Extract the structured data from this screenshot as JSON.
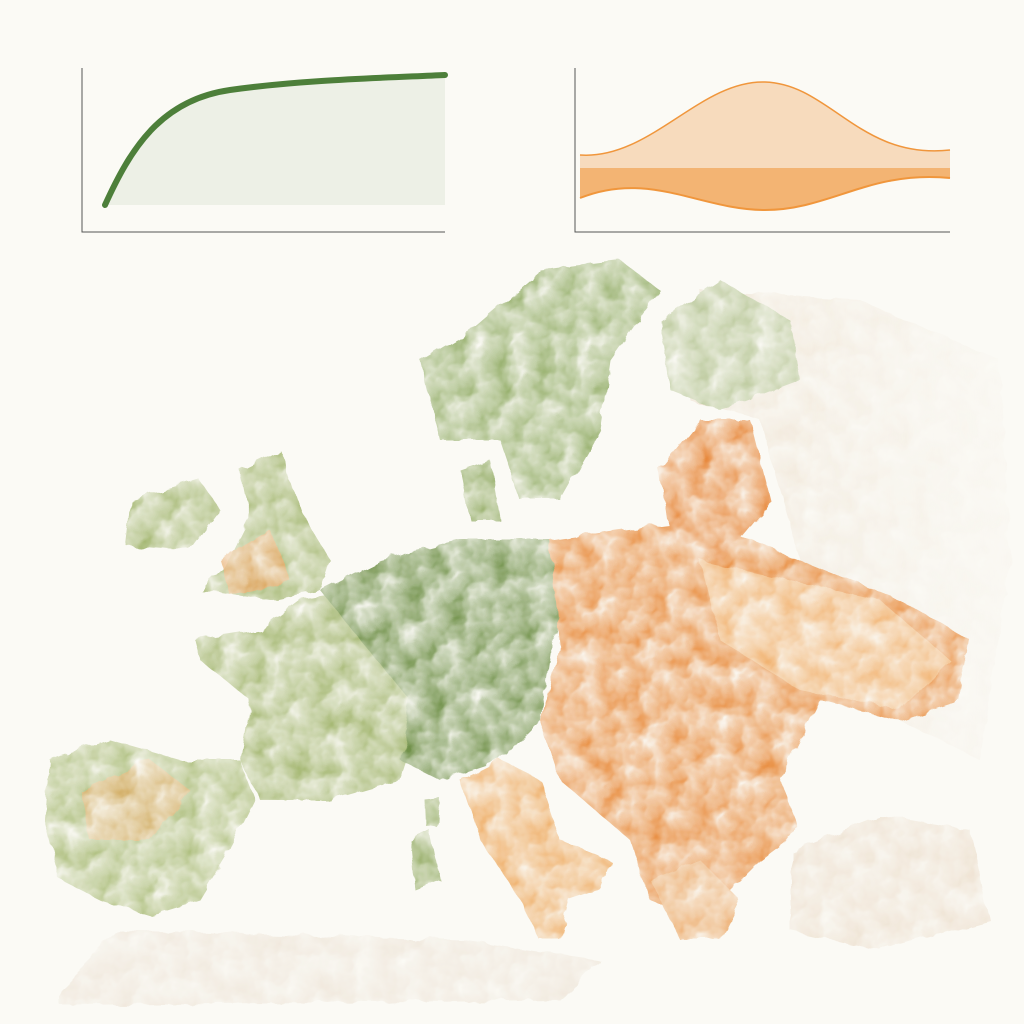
{
  "chart_data": [
    {
      "type": "line",
      "color": "#4d7f3a"
    },
    {
      "type": "area",
      "color": "#f0963c"
    }
  ]
}
